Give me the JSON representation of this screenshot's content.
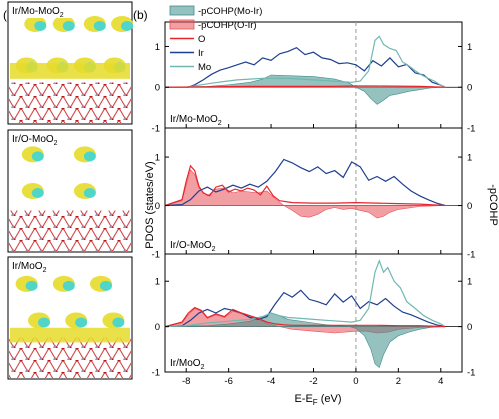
{
  "panel_a": {
    "label": "(a)",
    "structures": [
      {
        "label_main": "Ir/Mo-MoO",
        "label_sub": "2"
      },
      {
        "label_main": "Ir/O-MoO",
        "label_sub": "2"
      },
      {
        "label_main": "Ir/MoO",
        "label_sub": "2"
      }
    ]
  },
  "panel_b": {
    "label": "(b)"
  },
  "colors": {
    "ir": "#1f3f8f",
    "o": "#e8242a",
    "mo": "#6fb8b0",
    "cohp_mo_ir": "#3e8e8a",
    "cohp_o_ir": "#e8505a",
    "isosurface_yellow": "#e6dc2a",
    "isosurface_cyan": "#3fd4d8"
  },
  "chart_data": [
    {
      "type": "line",
      "panel_label": "Ir/Mo-MoO",
      "panel_label_sub": "2",
      "legend": [
        {
          "name": "-pCOHP(Mo-Ir)",
          "kind": "filled"
        },
        {
          "name": "-pCOHP(O-Ir)",
          "kind": "filled"
        },
        {
          "name": "O",
          "kind": "line"
        },
        {
          "name": "Ir",
          "kind": "line"
        },
        {
          "name": "Mo",
          "kind": "line"
        }
      ],
      "xlim": [
        -9,
        5
      ],
      "ylim": [
        -1,
        1.6
      ],
      "yticks_left": [
        "1",
        "0",
        "-1"
      ],
      "yticks_right": [
        "1",
        "0",
        "-1"
      ],
      "series": [
        {
          "name": "Ir",
          "x": [
            -9,
            -7.9,
            -7.6,
            -7.2,
            -6.8,
            -6.4,
            -6.0,
            -5.6,
            -5.2,
            -4.8,
            -4.4,
            -4.0,
            -3.6,
            -3.2,
            -2.8,
            -2.4,
            -2.0,
            -1.6,
            -1.2,
            -0.8,
            -0.4,
            0.0,
            0.4,
            0.8,
            1.2,
            1.6,
            2.0,
            2.4,
            2.8,
            3.2,
            3.6,
            4.0,
            4.2
          ],
          "y": [
            0,
            0,
            0.06,
            0.18,
            0.32,
            0.42,
            0.48,
            0.55,
            0.62,
            0.55,
            0.72,
            0.66,
            0.82,
            0.88,
            0.97,
            0.8,
            0.86,
            0.72,
            0.68,
            0.58,
            0.6,
            0.55,
            0.4,
            0.65,
            0.52,
            0.72,
            0.5,
            0.56,
            0.35,
            0.3,
            0.12,
            0.05,
            0
          ]
        },
        {
          "name": "Mo",
          "x": [
            -9,
            -8,
            -7.4,
            -6.8,
            -6.2,
            -5.6,
            -5.0,
            -4.4,
            -3.8,
            -3.2,
            -2.6,
            -2.0,
            -1.4,
            -0.8,
            -0.2,
            0.2,
            0.6,
            0.9,
            1.1,
            1.3,
            1.6,
            1.9,
            2.2,
            2.5,
            2.8,
            3.1,
            3.4,
            3.7,
            4.0,
            4.2
          ],
          "y": [
            0,
            0,
            0.05,
            0.1,
            0.14,
            0.18,
            0.2,
            0.22,
            0.22,
            0.22,
            0.2,
            0.18,
            0.16,
            0.14,
            0.12,
            0.15,
            0.4,
            1.15,
            1.25,
            1.05,
            0.95,
            0.9,
            0.62,
            0.52,
            0.4,
            0.3,
            0.22,
            0.15,
            0.05,
            0
          ]
        },
        {
          "name": "O",
          "x": [
            -9,
            -7,
            -5,
            -3,
            -1,
            0,
            1,
            3,
            4.2
          ],
          "y": [
            0,
            0.01,
            0.02,
            0.02,
            0.02,
            0.03,
            0.03,
            0.02,
            0
          ]
        }
      ],
      "fills": [
        {
          "name": "-pCOHP(Mo-Ir)",
          "x": [
            -9,
            -7,
            -6,
            -5,
            -4.4,
            -4,
            -3,
            -2,
            -1,
            -0.3,
            0,
            0.4,
            0.7,
            1.0,
            1.3,
            1.6,
            2.0,
            2.5,
            3.0,
            3.5,
            4.2
          ],
          "y": [
            0,
            0.02,
            0.06,
            0.12,
            0.2,
            0.3,
            0.28,
            0.26,
            0.2,
            0.1,
            0,
            -0.1,
            -0.28,
            -0.42,
            -0.32,
            -0.2,
            -0.16,
            -0.1,
            -0.06,
            -0.02,
            0
          ]
        }
      ]
    },
    {
      "type": "line",
      "panel_label": "Ir/O-MoO",
      "panel_label_sub": "2",
      "xlim": [
        -9,
        5
      ],
      "ylim": [
        -1,
        1.6
      ],
      "yticks_left": [
        "1",
        "0",
        "-1"
      ],
      "yticks_right": [
        "1",
        "0",
        "-1"
      ],
      "ylabel_left": "PDOS (states/eV)",
      "ylabel_right": "-pCOHP",
      "series": [
        {
          "name": "Ir",
          "x": [
            -9,
            -8.2,
            -7.8,
            -7.4,
            -7.0,
            -6.6,
            -6.2,
            -5.8,
            -5.4,
            -5.0,
            -4.6,
            -4.2,
            -3.8,
            -3.4,
            -3.0,
            -2.6,
            -2.2,
            -1.8,
            -1.4,
            -1.0,
            -0.6,
            -0.2,
            0.2,
            0.6,
            1.0,
            1.4,
            1.8,
            2.2,
            2.6,
            3.0,
            3.4,
            3.8,
            4.2
          ],
          "y": [
            0,
            0.02,
            0.12,
            0.3,
            0.38,
            0.28,
            0.34,
            0.42,
            0.36,
            0.44,
            0.38,
            0.5,
            0.7,
            0.95,
            0.88,
            0.78,
            0.7,
            0.8,
            0.66,
            0.72,
            0.58,
            0.9,
            0.8,
            0.52,
            0.6,
            0.5,
            0.6,
            0.44,
            0.3,
            0.2,
            0.12,
            0.05,
            0
          ]
        },
        {
          "name": "O",
          "x": [
            -9,
            -8.2,
            -8.0,
            -7.8,
            -7.6,
            -7.4,
            -7.2,
            -6.9,
            -6.6,
            -6.3,
            -6.0,
            -5.7,
            -5.4,
            -5.1,
            -4.8,
            -4.5,
            -4.2,
            -3.9,
            -3.6,
            -3.0,
            -2.0,
            -1.0,
            0,
            1.0,
            2.0,
            3.0,
            4.2
          ],
          "y": [
            0,
            0.12,
            0.5,
            0.82,
            0.72,
            0.4,
            0.26,
            0.2,
            0.38,
            0.42,
            0.28,
            0.34,
            0.3,
            0.36,
            0.32,
            0.22,
            0.4,
            0.2,
            0.1,
            0.06,
            0.05,
            0.05,
            0.06,
            0.05,
            0.04,
            0.03,
            0
          ]
        }
      ],
      "fills": [
        {
          "name": "-pCOHP(O-Ir)",
          "x": [
            -9,
            -8.2,
            -8.0,
            -7.8,
            -7.6,
            -7.4,
            -7.0,
            -6.6,
            -6.2,
            -5.8,
            -5.4,
            -5.0,
            -4.6,
            -4.2,
            -3.8,
            -3.4,
            -3.0,
            -2.6,
            -2.2,
            -1.8,
            -1.4,
            -1.0,
            -0.6,
            -0.2,
            0.2,
            0.6,
            1.0,
            1.3,
            1.6,
            2.0,
            2.5,
            3.0,
            4.2
          ],
          "y": [
            0,
            0.1,
            0.42,
            0.74,
            0.64,
            0.36,
            0.2,
            0.34,
            0.36,
            0.26,
            0.3,
            0.28,
            0.26,
            0.3,
            0.14,
            0.0,
            -0.1,
            -0.22,
            -0.24,
            -0.18,
            -0.08,
            -0.04,
            -0.08,
            -0.06,
            -0.1,
            -0.14,
            -0.26,
            -0.22,
            -0.14,
            -0.08,
            -0.05,
            -0.02,
            0
          ]
        }
      ]
    },
    {
      "type": "line",
      "panel_label": "Ir/MoO",
      "panel_label_sub": "2",
      "xlim": [
        -9,
        5
      ],
      "ylim": [
        -1,
        1.6
      ],
      "yticks_left": [
        "1",
        "0",
        "-1"
      ],
      "yticks_right": [
        "1",
        "0",
        "-1"
      ],
      "xticks": [
        "-8",
        "-6",
        "-4",
        "-2",
        "0",
        "2",
        "4"
      ],
      "xlabel_main": "E-E",
      "xlabel_sub": "F",
      "xlabel_unit": " (eV)",
      "series": [
        {
          "name": "Ir",
          "x": [
            -9,
            -8.2,
            -7.8,
            -7.4,
            -7.0,
            -6.6,
            -6.2,
            -5.8,
            -5.4,
            -5.0,
            -4.6,
            -4.2,
            -3.8,
            -3.4,
            -3.0,
            -2.6,
            -2.2,
            -1.8,
            -1.4,
            -1.0,
            -0.6,
            -0.2,
            0.2,
            0.6,
            1.0,
            1.4,
            1.8,
            2.2,
            2.6,
            3.0,
            3.4,
            3.8,
            4.2
          ],
          "y": [
            0,
            0.02,
            0.14,
            0.3,
            0.38,
            0.3,
            0.4,
            0.36,
            0.3,
            0.2,
            0.16,
            0.22,
            0.5,
            0.75,
            0.65,
            0.8,
            0.6,
            0.55,
            0.48,
            0.72,
            0.54,
            0.68,
            0.4,
            0.55,
            0.48,
            0.62,
            0.45,
            0.32,
            0.26,
            0.18,
            0.1,
            0.04,
            0
          ]
        },
        {
          "name": "Mo",
          "x": [
            -9,
            -8,
            -7,
            -6,
            -5,
            -4.4,
            -4.0,
            -3.6,
            -3.2,
            -2.6,
            -2.0,
            -1.4,
            -0.8,
            -0.2,
            0.2,
            0.6,
            0.9,
            1.1,
            1.3,
            1.5,
            1.8,
            2.1,
            2.4,
            2.8,
            3.2,
            3.6,
            4.0,
            4.2
          ],
          "y": [
            0,
            0.02,
            0.08,
            0.12,
            0.16,
            0.22,
            0.3,
            0.24,
            0.2,
            0.18,
            0.16,
            0.14,
            0.12,
            0.1,
            0.14,
            0.4,
            1.2,
            1.45,
            1.2,
            1.3,
            1.0,
            0.85,
            0.55,
            0.4,
            0.24,
            0.14,
            0.06,
            0
          ]
        },
        {
          "name": "O",
          "x": [
            -9,
            -8.2,
            -7.9,
            -7.6,
            -7.3,
            -7.0,
            -6.6,
            -6.2,
            -5.8,
            -5.4,
            -5.0,
            -4.6,
            -4.2,
            -3.8,
            -3.4,
            -3.0,
            -2.0,
            -1.0,
            0,
            1,
            2,
            3,
            4.2
          ],
          "y": [
            0,
            0.1,
            0.3,
            0.42,
            0.36,
            0.2,
            0.28,
            0.22,
            0.38,
            0.3,
            0.24,
            0.18,
            0.1,
            0.06,
            0.04,
            0.03,
            0.03,
            0.03,
            0.03,
            0.03,
            0.02,
            0.02,
            0
          ]
        }
      ],
      "fills": [
        {
          "name": "-pCOHP(O-Ir)",
          "x": [
            -9,
            -8.2,
            -7.9,
            -7.6,
            -7.3,
            -7.0,
            -6.6,
            -6.2,
            -5.8,
            -5.4,
            -5.0,
            -4.6,
            -4.2,
            -3.8,
            -3.4,
            -3.0,
            -2.0,
            -1.0,
            0,
            0.5,
            1.0,
            1.5,
            2.0,
            3.0,
            4.2
          ],
          "y": [
            0,
            0.08,
            0.26,
            0.4,
            0.34,
            0.18,
            0.26,
            0.2,
            0.34,
            0.28,
            0.22,
            0.16,
            0.08,
            0.02,
            -0.02,
            -0.06,
            -0.1,
            -0.14,
            -0.1,
            -0.1,
            -0.14,
            -0.12,
            -0.06,
            -0.02,
            0
          ]
        },
        {
          "name": "-pCOHP(Mo-Ir)",
          "x": [
            -9,
            -7,
            -6,
            -5,
            -4.4,
            -4.0,
            -3.6,
            -3.2,
            -2.6,
            -2.0,
            -1.4,
            -0.8,
            -0.3,
            0,
            0.4,
            0.7,
            0.9,
            1.1,
            1.3,
            1.6,
            2.0,
            2.5,
            3.0,
            3.5,
            4.2
          ],
          "y": [
            0,
            0.02,
            0.06,
            0.12,
            0.22,
            0.3,
            0.24,
            0.16,
            0.12,
            0.08,
            0.04,
            0.02,
            0,
            -0.04,
            -0.2,
            -0.5,
            -0.82,
            -0.9,
            -0.62,
            -0.34,
            -0.2,
            -0.12,
            -0.06,
            -0.02,
            0
          ]
        }
      ]
    }
  ]
}
